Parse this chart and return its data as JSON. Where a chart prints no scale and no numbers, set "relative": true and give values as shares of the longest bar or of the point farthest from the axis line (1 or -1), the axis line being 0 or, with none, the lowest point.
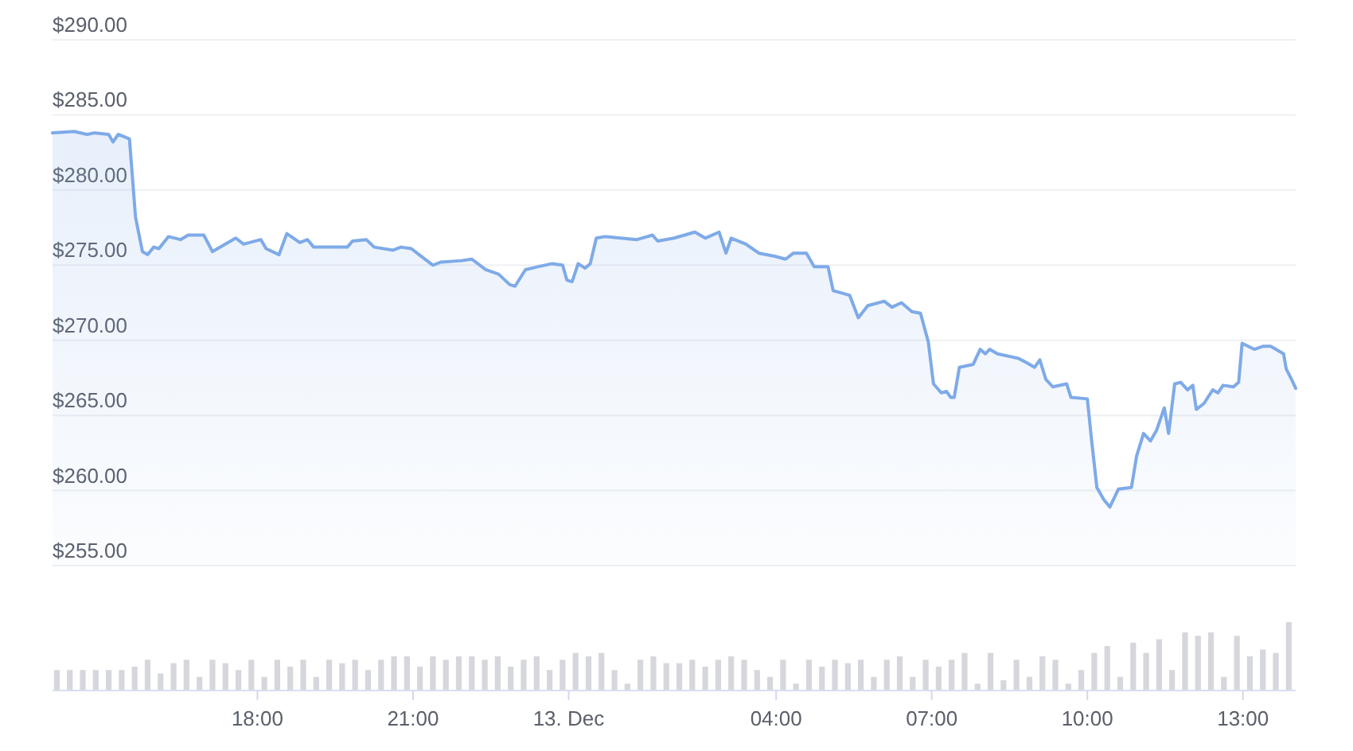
{
  "chart_data": [
    {
      "type": "area",
      "color": "#7eaae8",
      "xlim": [
        "--12-12T14:03",
        "--12-13T14:01"
      ],
      "ylim": [
        255,
        290
      ],
      "grid": "y",
      "tick_labels": "y",
      "yticks": [
        {
          "value": 255,
          "label": "$255.00"
        },
        {
          "value": 260,
          "label": "$260.00"
        },
        {
          "value": 265,
          "label": "$265.00"
        },
        {
          "value": 270,
          "label": "$270.00"
        },
        {
          "value": 275,
          "label": "$275.00"
        },
        {
          "value": 280,
          "label": "$280.00"
        },
        {
          "value": 285,
          "label": "$285.00"
        },
        {
          "value": 290,
          "label": "$290.00"
        }
      ],
      "x": [
        "--12-12T14:03",
        "--12-12T14:28",
        "--12-12T14:43",
        "--12-12T14:51",
        "--12-12T15:08",
        "--12-12T15:13",
        "--12-12T15:19",
        "--12-12T15:32",
        "--12-12T15:39",
        "--12-12T15:47",
        "--12-12T15:53",
        "--12-12T16:00",
        "--12-12T16:06",
        "--12-12T16:17",
        "--12-12T16:31",
        "--12-12T16:40",
        "--12-12T16:58",
        "--12-12T17:08",
        "--12-12T17:23",
        "--12-12T17:35",
        "--12-12T17:44",
        "--12-12T18:04",
        "--12-12T18:10",
        "--12-12T18:25",
        "--12-12T18:34",
        "--12-12T18:49",
        "--12-12T18:58",
        "--12-12T19:05",
        "--12-12T19:23",
        "--12-12T19:44",
        "--12-12T19:50",
        "--12-12T20:06",
        "--12-12T20:15",
        "--12-12T20:37",
        "--12-12T20:46",
        "--12-12T20:58",
        "--12-12T21:07",
        "--12-12T21:23",
        "--12-12T21:32",
        "--12-12T21:56",
        "--12-12T22:08",
        "--12-12T22:24",
        "--12-12T22:39",
        "--12-12T22:52",
        "--12-12T22:58",
        "--12-12T23:10",
        "--12-12T23:25",
        "--12-12T23:41",
        "--12-12T23:53",
        "--12-12T23:58",
        "--12-13T00:04",
        "--12-13T00:11",
        "--12-13T00:19",
        "--12-13T00:25",
        "--12-13T00:32",
        "--12-13T00:42",
        "--12-13T01:00",
        "--12-13T01:19",
        "--12-13T01:37",
        "--12-13T01:43",
        "--12-13T02:02",
        "--12-13T02:26",
        "--12-13T02:38",
        "--12-13T02:54",
        "--12-13T03:02",
        "--12-13T03:08",
        "--12-13T03:25",
        "--12-13T03:40",
        "--12-13T03:58",
        "--12-13T04:11",
        "--12-13T04:20",
        "--12-13T04:35",
        "--12-13T04:44",
        "--12-13T05:00",
        "--12-13T05:06",
        "--12-13T05:25",
        "--12-13T05:35",
        "--12-13T05:46",
        "--12-13T06:05",
        "--12-13T06:14",
        "--12-13T06:25",
        "--12-13T06:37",
        "--12-13T06:47",
        "--12-13T06:56",
        "--12-13T07:02",
        "--12-13T07:11",
        "--12-13T07:17",
        "--12-13T07:22",
        "--12-13T07:26",
        "--12-13T07:32",
        "--12-13T07:48",
        "--12-13T07:56",
        "--12-13T08:02",
        "--12-13T08:07",
        "--12-13T08:16",
        "--12-13T08:40",
        "--12-13T08:50",
        "--12-13T08:59",
        "--12-13T09:05",
        "--12-13T09:12",
        "--12-13T09:20",
        "--12-13T09:36",
        "--12-13T09:41",
        "--12-13T10:00",
        "--12-13T10:05",
        "--12-13T10:11",
        "--12-13T10:19",
        "--12-13T10:26",
        "--12-13T10:36",
        "--12-13T10:51",
        "--12-13T10:57",
        "--12-13T11:05",
        "--12-13T11:13",
        "--12-13T11:20",
        "--12-13T11:29",
        "--12-13T11:34",
        "--12-13T11:41",
        "--12-13T11:48",
        "--12-13T11:56",
        "--12-13T12:02",
        "--12-13T12:06",
        "--12-13T12:15",
        "--12-13T12:25",
        "--12-13T12:31",
        "--12-13T12:37",
        "--12-13T12:49",
        "--12-13T12:55",
        "--12-13T12:59",
        "--12-13T13:13",
        "--12-13T13:23",
        "--12-13T13:32",
        "--12-13T13:38",
        "--12-13T13:47",
        "--12-13T13:50",
        "--12-13T13:57",
        "--12-13T14:01"
      ],
      "values": [
        283.8,
        283.9,
        283.7,
        283.8,
        283.7,
        283.2,
        283.7,
        283.4,
        278.2,
        275.9,
        275.7,
        276.2,
        276.1,
        276.9,
        276.7,
        277.0,
        277.0,
        275.9,
        276.4,
        276.8,
        276.4,
        276.7,
        276.1,
        275.7,
        277.1,
        276.5,
        276.7,
        276.2,
        276.2,
        276.2,
        276.6,
        276.7,
        276.2,
        276.0,
        276.2,
        276.1,
        275.7,
        275.0,
        275.2,
        275.3,
        275.4,
        274.7,
        274.4,
        273.7,
        273.6,
        274.7,
        274.9,
        275.1,
        275.0,
        274.0,
        273.9,
        275.1,
        274.8,
        275.1,
        276.8,
        276.9,
        276.8,
        276.7,
        277.0,
        276.6,
        276.8,
        277.2,
        276.8,
        277.2,
        275.8,
        276.8,
        276.4,
        275.8,
        275.6,
        275.4,
        275.8,
        275.8,
        274.9,
        274.9,
        273.3,
        273.0,
        271.5,
        272.3,
        272.6,
        272.2,
        272.5,
        271.9,
        271.8,
        269.9,
        267.1,
        266.5,
        266.6,
        266.2,
        266.2,
        268.2,
        268.4,
        269.4,
        269.1,
        269.4,
        269.1,
        268.8,
        268.5,
        268.2,
        268.7,
        267.4,
        266.9,
        267.1,
        266.2,
        266.1,
        263.3,
        260.2,
        259.4,
        258.9,
        260.1,
        260.2,
        262.3,
        263.8,
        263.3,
        264.0,
        265.5,
        263.8,
        267.1,
        267.2,
        266.7,
        267.0,
        265.4,
        265.8,
        266.7,
        266.5,
        267.0,
        266.9,
        267.2,
        269.8,
        269.4,
        269.6,
        269.6,
        269.4,
        269.1,
        268.1,
        267.3,
        266.8
      ]
    },
    {
      "type": "bar",
      "relative": true,
      "color": "#d5d7dc",
      "xlim": [
        "--12-12T14:03",
        "--12-13T14:01"
      ],
      "tick_labels": "x",
      "xticks": [
        {
          "value": "--12-12T18:00",
          "label": "18:00"
        },
        {
          "value": "--12-12T21:00",
          "label": "21:00"
        },
        {
          "value": "--12-13T00:00",
          "label": "13. Dec"
        },
        {
          "value": "--12-13T04:00",
          "label": "04:00"
        },
        {
          "value": "--12-13T07:00",
          "label": "07:00"
        },
        {
          "value": "--12-13T10:00",
          "label": "10:00"
        },
        {
          "value": "--12-13T13:00",
          "label": "13:00"
        }
      ],
      "x": [
        "--12-12T14:08",
        "--12-12T14:23",
        "--12-12T14:38",
        "--12-12T14:53",
        "--12-12T15:08",
        "--12-12T15:23",
        "--12-12T15:38",
        "--12-12T15:53",
        "--12-12T16:08",
        "--12-12T16:23",
        "--12-12T16:38",
        "--12-12T16:53",
        "--12-12T17:08",
        "--12-12T17:23",
        "--12-12T17:38",
        "--12-12T17:53",
        "--12-12T18:08",
        "--12-12T18:23",
        "--12-12T18:38",
        "--12-12T18:53",
        "--12-12T19:08",
        "--12-12T19:23",
        "--12-12T19:38",
        "--12-12T19:53",
        "--12-12T20:08",
        "--12-12T20:23",
        "--12-12T20:38",
        "--12-12T20:53",
        "--12-12T21:08",
        "--12-12T21:23",
        "--12-12T21:38",
        "--12-12T21:53",
        "--12-12T22:08",
        "--12-12T22:23",
        "--12-12T22:38",
        "--12-12T22:53",
        "--12-12T23:08",
        "--12-12T23:23",
        "--12-12T23:38",
        "--12-12T23:53",
        "--12-13T00:08",
        "--12-13T00:23",
        "--12-13T00:38",
        "--12-13T00:53",
        "--12-13T01:08",
        "--12-13T01:23",
        "--12-13T01:38",
        "--12-13T01:53",
        "--12-13T02:08",
        "--12-13T02:23",
        "--12-13T02:38",
        "--12-13T02:53",
        "--12-13T03:08",
        "--12-13T03:23",
        "--12-13T03:38",
        "--12-13T03:53",
        "--12-13T04:08",
        "--12-13T04:23",
        "--12-13T04:38",
        "--12-13T04:53",
        "--12-13T05:08",
        "--12-13T05:23",
        "--12-13T05:38",
        "--12-13T05:53",
        "--12-13T06:08",
        "--12-13T06:23",
        "--12-13T06:38",
        "--12-13T06:53",
        "--12-13T07:08",
        "--12-13T07:23",
        "--12-13T07:38",
        "--12-13T07:53",
        "--12-13T08:08",
        "--12-13T08:23",
        "--12-13T08:38",
        "--12-13T08:53",
        "--12-13T09:08",
        "--12-13T09:23",
        "--12-13T09:38",
        "--12-13T09:53",
        "--12-13T10:08",
        "--12-13T10:23",
        "--12-13T10:38",
        "--12-13T10:53",
        "--12-13T11:08",
        "--12-13T11:23",
        "--12-13T11:38",
        "--12-13T11:53",
        "--12-13T12:08",
        "--12-13T12:23",
        "--12-13T12:38",
        "--12-13T12:53",
        "--12-13T13:08",
        "--12-13T13:23",
        "--12-13T13:38",
        "--12-13T13:53"
      ],
      "values": [
        0.3,
        0.3,
        0.3,
        0.3,
        0.3,
        0.3,
        0.35,
        0.45,
        0.25,
        0.4,
        0.45,
        0.2,
        0.45,
        0.4,
        0.3,
        0.45,
        0.2,
        0.45,
        0.35,
        0.45,
        0.2,
        0.45,
        0.4,
        0.45,
        0.3,
        0.45,
        0.5,
        0.5,
        0.35,
        0.5,
        0.45,
        0.5,
        0.5,
        0.45,
        0.5,
        0.35,
        0.45,
        0.5,
        0.3,
        0.45,
        0.55,
        0.5,
        0.55,
        0.3,
        0.1,
        0.45,
        0.5,
        0.4,
        0.4,
        0.45,
        0.35,
        0.45,
        0.5,
        0.45,
        0.3,
        0.2,
        0.45,
        0.1,
        0.45,
        0.35,
        0.45,
        0.4,
        0.45,
        0.2,
        0.45,
        0.5,
        0.2,
        0.45,
        0.35,
        0.45,
        0.55,
        0.1,
        0.55,
        0.15,
        0.45,
        0.2,
        0.5,
        0.45,
        0.1,
        0.3,
        0.55,
        0.65,
        0.2,
        0.7,
        0.55,
        0.75,
        0.3,
        0.85,
        0.8,
        0.85,
        0.2,
        0.8,
        0.5,
        0.6,
        0.55,
        1.0
      ]
    }
  ]
}
